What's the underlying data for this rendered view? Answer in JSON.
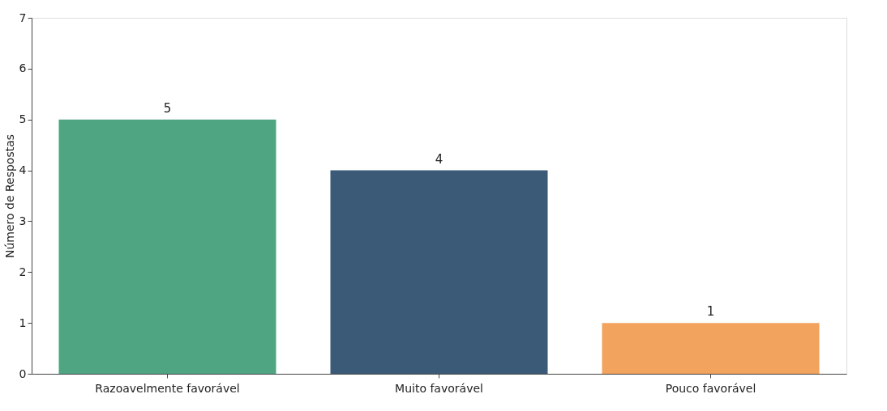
{
  "chart_data": {
    "type": "bar",
    "ylabel": "Número de Respostas",
    "categories": [
      "Razoavelmente favorável",
      "Muito favorável",
      "Pouco favorável"
    ],
    "values": [
      5,
      4,
      1
    ],
    "colors": [
      "#4fa582",
      "#3b5a78",
      "#f2a35e"
    ],
    "ylim": [
      0,
      7
    ],
    "yticks": [
      0,
      1,
      2,
      3,
      4,
      5,
      6,
      7
    ],
    "data_labels": true,
    "grid": false,
    "legend": false
  }
}
